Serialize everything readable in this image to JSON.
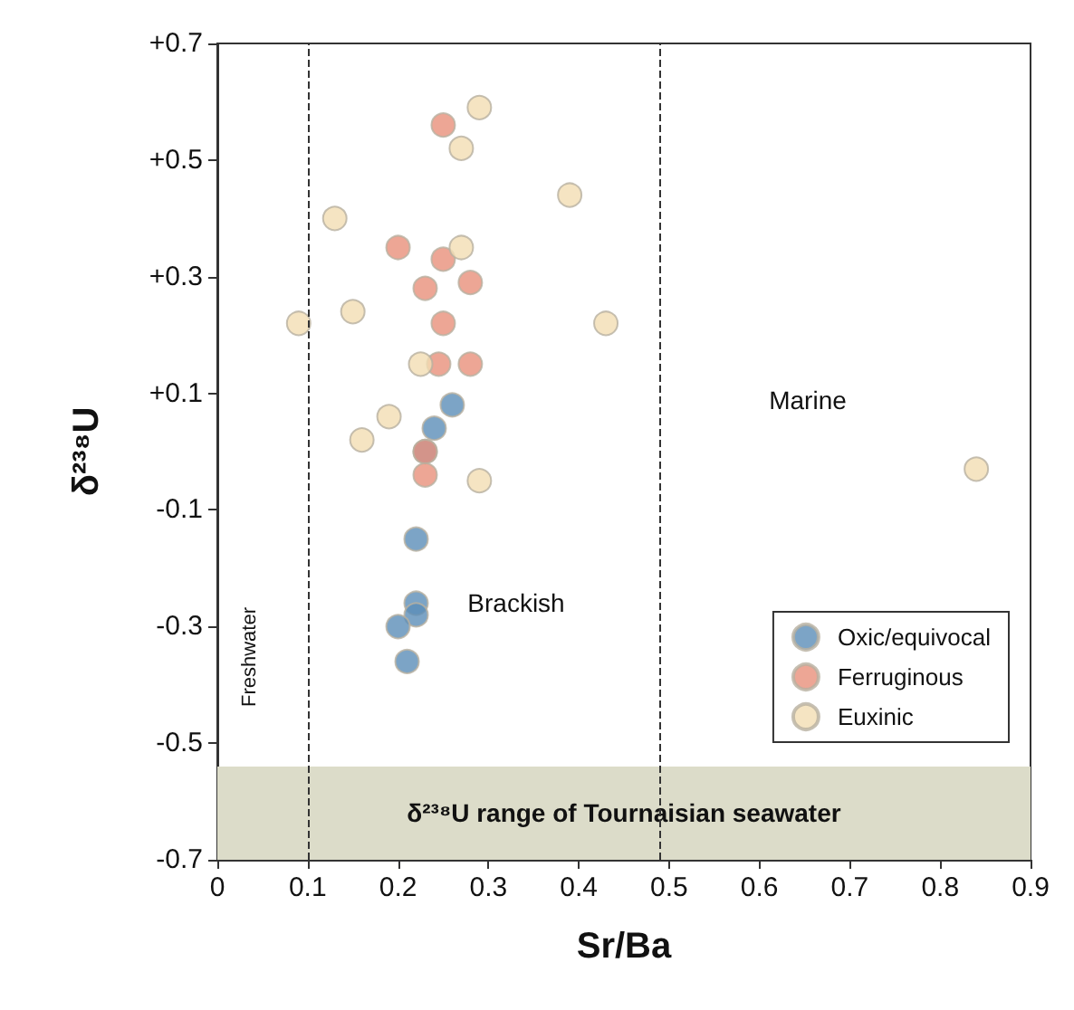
{
  "chart_data": {
    "type": "scatter",
    "xlabel": "Sr/Ba",
    "ylabel": "δ²³⁸U",
    "xlim": [
      0,
      0.9
    ],
    "xticks": [
      0,
      0.1,
      0.2,
      0.3,
      0.4,
      0.5,
      0.6,
      0.7,
      0.8,
      0.9
    ],
    "ylim": [
      -0.7,
      0.7
    ],
    "yticks": [
      {
        "value": -0.7,
        "label": "-0.7"
      },
      {
        "value": -0.5,
        "label": "-0.5"
      },
      {
        "value": -0.3,
        "label": "-0.3"
      },
      {
        "value": -0.1,
        "label": "-0.1"
      },
      {
        "value": 0.1,
        "label": "+0.1"
      },
      {
        "value": 0.3,
        "label": "+0.3"
      },
      {
        "value": 0.5,
        "label": "+0.5"
      },
      {
        "value": 0.7,
        "label": "+0.7"
      }
    ],
    "grid": false,
    "legend": "bottom right",
    "marker": "circle",
    "series": [
      {
        "name": "Oxic/equivocal",
        "color": "#5b8db8",
        "x": [
          0.26,
          0.24,
          0.23,
          0.22,
          0.22,
          0.22,
          0.2,
          0.21
        ],
        "values": [
          0.08,
          0.04,
          0.0,
          -0.15,
          -0.26,
          -0.28,
          -0.3,
          -0.36
        ]
      },
      {
        "name": "Ferruginous",
        "color": "#e8907a",
        "x": [
          0.25,
          0.2,
          0.25,
          0.23,
          0.28,
          0.25,
          0.245,
          0.28,
          0.23,
          0.23
        ],
        "values": [
          0.56,
          0.35,
          0.33,
          0.28,
          0.29,
          0.22,
          0.15,
          0.15,
          0.0,
          -0.04
        ]
      },
      {
        "name": "Euxinic",
        "color": "#f3ddb3",
        "x": [
          0.29,
          0.27,
          0.39,
          0.13,
          0.27,
          0.15,
          0.09,
          0.43,
          0.84,
          0.225,
          0.19,
          0.16,
          0.29
        ],
        "values": [
          0.59,
          0.52,
          0.44,
          0.4,
          0.35,
          0.24,
          0.22,
          0.22,
          -0.03,
          0.15,
          0.06,
          0.02,
          -0.05
        ]
      }
    ],
    "ref_lines": [
      {
        "axis": "x",
        "value": 0.1,
        "line_style": "dashed",
        "color": "#333333"
      },
      {
        "axis": "x",
        "value": 0.49,
        "line_style": "dashed",
        "color": "#333333"
      }
    ],
    "bands": [
      {
        "axis": "y",
        "from": -0.7,
        "to": -0.54,
        "label": "δ²³⁸U range of Tournaisian seawater",
        "color": "#dcdcc9"
      }
    ],
    "annotations": [
      "Freshwater",
      "Brackish",
      "Marine"
    ]
  }
}
